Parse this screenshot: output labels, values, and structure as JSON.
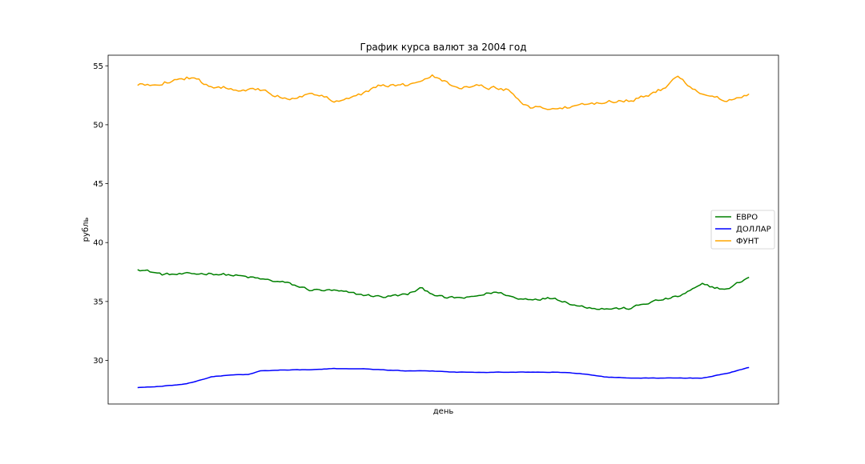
{
  "chart_data": {
    "type": "line",
    "title": "График курса валют за 2004 год",
    "xlabel": "день",
    "ylabel": "рубль",
    "ylim": [
      26.3,
      55.9
    ],
    "yticks": [
      30,
      35,
      40,
      45,
      50,
      55
    ],
    "xticks": [],
    "grid": false,
    "legend": "center-right",
    "x_count": 250,
    "series": [
      {
        "name": "ЕВРО",
        "color": "#008000",
        "keypoints": [
          [
            0,
            37.8
          ],
          [
            10,
            37.3
          ],
          [
            20,
            37.3
          ],
          [
            30,
            37.4
          ],
          [
            40,
            37.2
          ],
          [
            50,
            36.9
          ],
          [
            60,
            36.6
          ],
          [
            70,
            36.0
          ],
          [
            80,
            35.9
          ],
          [
            90,
            35.6
          ],
          [
            100,
            35.4
          ],
          [
            110,
            35.6
          ],
          [
            115,
            36.1
          ],
          [
            125,
            35.3
          ],
          [
            135,
            35.3
          ],
          [
            145,
            35.8
          ],
          [
            150,
            35.6
          ],
          [
            155,
            35.2
          ],
          [
            170,
            35.3
          ],
          [
            180,
            34.6
          ],
          [
            190,
            34.4
          ],
          [
            200,
            34.4
          ],
          [
            210,
            35.0
          ],
          [
            220,
            35.4
          ],
          [
            230,
            36.4
          ],
          [
            240,
            36.0
          ],
          [
            249,
            37.1
          ]
        ]
      },
      {
        "name": "ДОЛЛАР",
        "color": "#0000ff",
        "keypoints": [
          [
            0,
            27.7
          ],
          [
            10,
            27.8
          ],
          [
            20,
            28.0
          ],
          [
            30,
            28.6
          ],
          [
            40,
            28.8
          ],
          [
            45,
            28.8
          ],
          [
            50,
            29.1
          ],
          [
            60,
            29.2
          ],
          [
            70,
            29.2
          ],
          [
            80,
            29.3
          ],
          [
            90,
            29.3
          ],
          [
            100,
            29.2
          ],
          [
            110,
            29.1
          ],
          [
            120,
            29.1
          ],
          [
            130,
            29.0
          ],
          [
            140,
            29.0
          ],
          [
            150,
            29.0
          ],
          [
            160,
            29.0
          ],
          [
            170,
            29.0
          ],
          [
            180,
            28.9
          ],
          [
            190,
            28.6
          ],
          [
            200,
            28.5
          ],
          [
            210,
            28.5
          ],
          [
            220,
            28.5
          ],
          [
            230,
            28.5
          ],
          [
            240,
            28.9
          ],
          [
            249,
            29.4
          ]
        ]
      },
      {
        "name": "ФУНТ",
        "color": "#ffa500",
        "keypoints": [
          [
            0,
            53.3
          ],
          [
            10,
            53.6
          ],
          [
            20,
            54.0
          ],
          [
            30,
            53.3
          ],
          [
            40,
            53.1
          ],
          [
            50,
            52.9
          ],
          [
            60,
            52.2
          ],
          [
            70,
            52.6
          ],
          [
            80,
            52.1
          ],
          [
            90,
            52.5
          ],
          [
            100,
            53.4
          ],
          [
            110,
            53.3
          ],
          [
            120,
            54.3
          ],
          [
            130,
            53.2
          ],
          [
            140,
            53.3
          ],
          [
            150,
            53.0
          ],
          [
            160,
            51.5
          ],
          [
            170,
            51.4
          ],
          [
            180,
            51.5
          ],
          [
            190,
            52.0
          ],
          [
            200,
            52.1
          ],
          [
            210,
            52.6
          ],
          [
            215,
            53.2
          ],
          [
            220,
            54.0
          ],
          [
            230,
            52.6
          ],
          [
            240,
            52.0
          ],
          [
            249,
            52.5
          ]
        ]
      }
    ]
  }
}
